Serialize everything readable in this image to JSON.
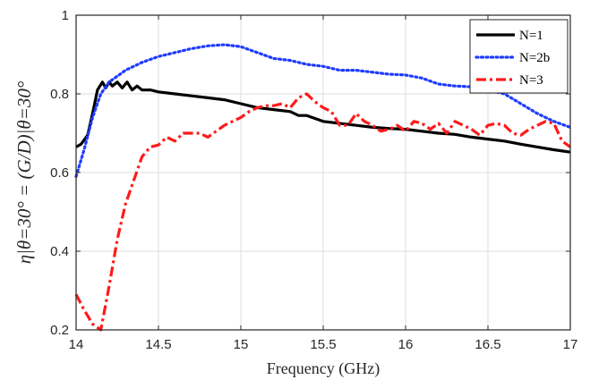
{
  "chart_data": {
    "type": "line",
    "xlabel": "Frequency (GHz)",
    "ylabel": "η|θ=30° = (G/D)|θ=30°",
    "xlim": [
      14,
      17
    ],
    "ylim": [
      0.2,
      1
    ],
    "xticks": [
      "14",
      "14.5",
      "15",
      "15.5",
      "16",
      "16.5",
      "17"
    ],
    "yticks": [
      "0.2",
      "0.4",
      "0.6",
      "0.8",
      "1"
    ],
    "grid": true,
    "legend_position": "top-right",
    "series": [
      {
        "name": "N=1",
        "color": "#000000",
        "style": "solid",
        "x": [
          14.0,
          14.03,
          14.07,
          14.1,
          14.13,
          14.16,
          14.18,
          14.2,
          14.22,
          14.25,
          14.28,
          14.31,
          14.34,
          14.37,
          14.4,
          14.45,
          14.5,
          14.6,
          14.7,
          14.8,
          14.9,
          15.0,
          15.1,
          15.2,
          15.3,
          15.35,
          15.4,
          15.5,
          15.6,
          15.7,
          15.8,
          15.9,
          16.0,
          16.1,
          16.2,
          16.3,
          16.4,
          16.5,
          16.6,
          16.7,
          16.8,
          16.9,
          17.0
        ],
        "y": [
          0.665,
          0.672,
          0.695,
          0.75,
          0.81,
          0.83,
          0.815,
          0.83,
          0.82,
          0.83,
          0.815,
          0.83,
          0.81,
          0.82,
          0.81,
          0.81,
          0.805,
          0.8,
          0.795,
          0.79,
          0.785,
          0.775,
          0.765,
          0.76,
          0.755,
          0.745,
          0.745,
          0.73,
          0.725,
          0.72,
          0.715,
          0.712,
          0.71,
          0.705,
          0.7,
          0.697,
          0.69,
          0.685,
          0.68,
          0.672,
          0.665,
          0.658,
          0.652
        ]
      },
      {
        "name": "N=2b",
        "color": "#1f3cff",
        "style": "dotted",
        "x": [
          14.0,
          14.05,
          14.1,
          14.15,
          14.2,
          14.3,
          14.4,
          14.5,
          14.6,
          14.7,
          14.8,
          14.9,
          15.0,
          15.1,
          15.2,
          15.3,
          15.4,
          15.5,
          15.6,
          15.7,
          15.8,
          15.9,
          16.0,
          16.1,
          16.2,
          16.3,
          16.4,
          16.5,
          16.6,
          16.7,
          16.8,
          16.9,
          17.0
        ],
        "y": [
          0.59,
          0.66,
          0.74,
          0.8,
          0.83,
          0.86,
          0.88,
          0.895,
          0.905,
          0.915,
          0.922,
          0.925,
          0.92,
          0.905,
          0.89,
          0.885,
          0.875,
          0.87,
          0.86,
          0.86,
          0.855,
          0.85,
          0.848,
          0.84,
          0.825,
          0.82,
          0.818,
          0.81,
          0.8,
          0.775,
          0.75,
          0.73,
          0.715
        ]
      },
      {
        "name": "N=3",
        "color": "#ff1a1a",
        "style": "dashdot",
        "x": [
          14.0,
          14.05,
          14.1,
          14.15,
          14.2,
          14.25,
          14.3,
          14.35,
          14.4,
          14.45,
          14.5,
          14.55,
          14.6,
          14.65,
          14.7,
          14.75,
          14.8,
          14.85,
          14.9,
          14.95,
          15.0,
          15.05,
          15.1,
          15.15,
          15.2,
          15.25,
          15.3,
          15.35,
          15.4,
          15.45,
          15.5,
          15.55,
          15.6,
          15.65,
          15.7,
          15.75,
          15.8,
          15.85,
          15.9,
          15.95,
          16.0,
          16.05,
          16.1,
          16.15,
          16.2,
          16.25,
          16.3,
          16.35,
          16.4,
          16.45,
          16.5,
          16.55,
          16.6,
          16.65,
          16.7,
          16.75,
          16.8,
          16.85,
          16.9,
          16.95,
          17.0
        ],
        "y": [
          0.29,
          0.25,
          0.215,
          0.2,
          0.31,
          0.43,
          0.52,
          0.58,
          0.64,
          0.665,
          0.67,
          0.69,
          0.68,
          0.7,
          0.7,
          0.7,
          0.69,
          0.705,
          0.72,
          0.73,
          0.74,
          0.755,
          0.765,
          0.77,
          0.77,
          0.775,
          0.765,
          0.79,
          0.8,
          0.78,
          0.765,
          0.755,
          0.72,
          0.72,
          0.75,
          0.73,
          0.72,
          0.705,
          0.71,
          0.72,
          0.705,
          0.73,
          0.725,
          0.71,
          0.725,
          0.7,
          0.73,
          0.72,
          0.71,
          0.695,
          0.72,
          0.725,
          0.72,
          0.7,
          0.695,
          0.71,
          0.72,
          0.73,
          0.725,
          0.68,
          0.665
        ]
      }
    ]
  }
}
